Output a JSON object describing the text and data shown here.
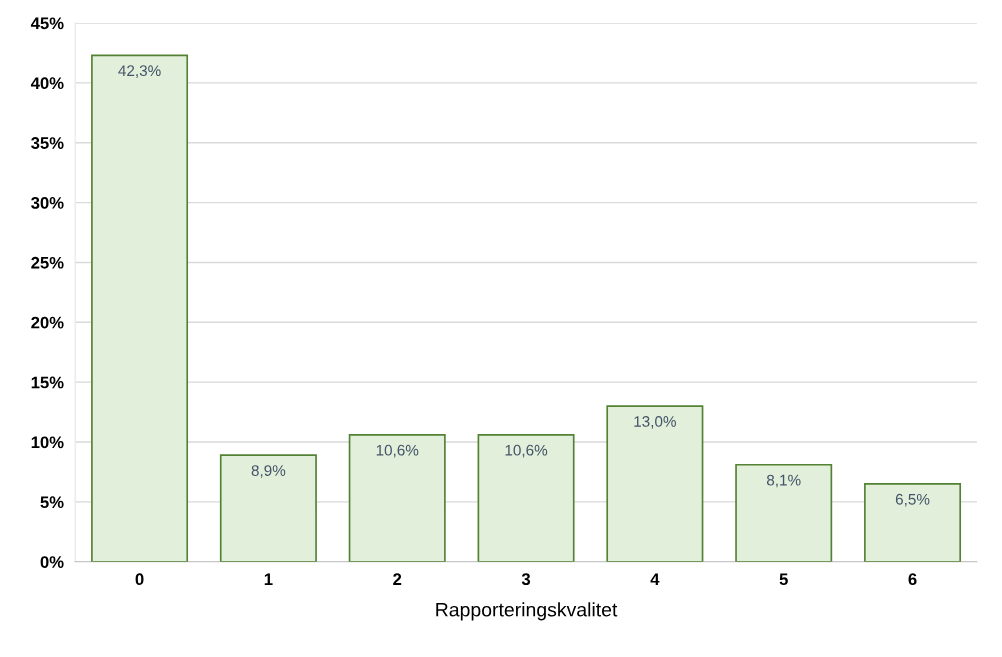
{
  "chart_data": {
    "type": "bar",
    "xlabel": "Rapporteringskvalitet",
    "categories": [
      "0",
      "1",
      "2",
      "3",
      "4",
      "5",
      "6"
    ],
    "values": [
      42.3,
      8.9,
      10.6,
      10.6,
      13.0,
      8.1,
      6.5
    ],
    "value_labels": [
      "42,3%",
      "8,9%",
      "10,6%",
      "10,6%",
      "13,0%",
      "8,1%",
      "6,5%"
    ],
    "color": "#e2efda",
    "ylim": [
      0,
      45
    ],
    "yticks": [
      {
        "value": 0,
        "label": "0%"
      },
      {
        "value": 5,
        "label": "5%"
      },
      {
        "value": 10,
        "label": "10%"
      },
      {
        "value": 15,
        "label": "15%"
      },
      {
        "value": 20,
        "label": "20%"
      },
      {
        "value": 25,
        "label": "25%"
      },
      {
        "value": 30,
        "label": "30%"
      },
      {
        "value": 35,
        "label": "35%"
      },
      {
        "value": 40,
        "label": "40%"
      },
      {
        "value": 45,
        "label": "45%"
      }
    ],
    "grid": "y"
  }
}
